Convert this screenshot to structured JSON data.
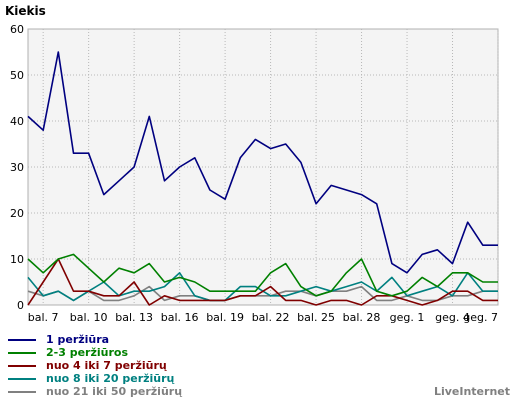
{
  "chart_data": {
    "type": "line",
    "ylabel": "Kiekis",
    "ylim": [
      0,
      60
    ],
    "yticks": [
      0,
      10,
      20,
      30,
      40,
      50,
      60
    ],
    "grid": true,
    "legend_position": "bottom-left",
    "categories": [
      "bal. 6",
      "bal. 7",
      "bal. 8",
      "bal. 9",
      "bal. 10",
      "bal. 11",
      "bal. 12",
      "bal. 13",
      "bal. 14",
      "bal. 15",
      "bal. 16",
      "bal. 17",
      "bal. 18",
      "bal. 19",
      "bal. 20",
      "bal. 21",
      "bal. 22",
      "bal. 23",
      "bal. 24",
      "bal. 25",
      "bal. 26",
      "bal. 27",
      "bal. 28",
      "bal. 29",
      "bal. 30",
      "geg. 1",
      "geg. 2",
      "geg. 3",
      "geg. 4",
      "geg. 5",
      "geg. 6",
      "geg. 7"
    ],
    "tick_labels": [
      "bal. 7",
      "bal. 10",
      "bal. 13",
      "bal. 16",
      "bal. 19",
      "bal. 22",
      "bal. 25",
      "bal. 28",
      "geg. 1",
      "geg. 4",
      "geg. 7"
    ],
    "series": [
      {
        "name": "1 peržiūra",
        "color": "#000080",
        "values": [
          41,
          38,
          55,
          33,
          33,
          24,
          27,
          30,
          41,
          27,
          30,
          32,
          25,
          23,
          32,
          36,
          34,
          35,
          31,
          22,
          26,
          25,
          24,
          22,
          9,
          7,
          11,
          12,
          9,
          18,
          13,
          13
        ]
      },
      {
        "name": "2-3 peržiūros",
        "color": "#008000",
        "values": [
          10,
          7,
          10,
          11,
          8,
          5,
          8,
          7,
          9,
          5,
          6,
          5,
          3,
          3,
          3,
          3,
          7,
          9,
          4,
          2,
          3,
          7,
          10,
          3,
          2,
          3,
          6,
          4,
          7,
          7,
          5,
          5
        ]
      },
      {
        "name": "nuo 4 iki 7 peržiūrų",
        "color": "#800000",
        "values": [
          0,
          5,
          10,
          3,
          3,
          2,
          2,
          5,
          0,
          2,
          1,
          1,
          1,
          1,
          2,
          2,
          4,
          1,
          1,
          0,
          1,
          1,
          0,
          2,
          2,
          1,
          0,
          1,
          3,
          3,
          1,
          1
        ]
      },
      {
        "name": "nuo 8 iki 20 peržiūrų",
        "color": "#008080",
        "values": [
          6,
          2,
          3,
          1,
          3,
          5,
          2,
          3,
          3,
          4,
          7,
          2,
          1,
          1,
          4,
          4,
          2,
          2,
          3,
          4,
          3,
          4,
          5,
          3,
          6,
          2,
          3,
          4,
          2,
          7,
          3,
          3
        ]
      },
      {
        "name": "nuo 21 iki 50 peržiūrų",
        "color": "#808080",
        "values": [
          3,
          2,
          3,
          1,
          3,
          1,
          1,
          2,
          4,
          1,
          2,
          2,
          1,
          1,
          2,
          2,
          2,
          3,
          3,
          2,
          3,
          3,
          4,
          1,
          1,
          2,
          1,
          1,
          2,
          2,
          3,
          3
        ]
      }
    ]
  },
  "credit": "LiveInternet"
}
